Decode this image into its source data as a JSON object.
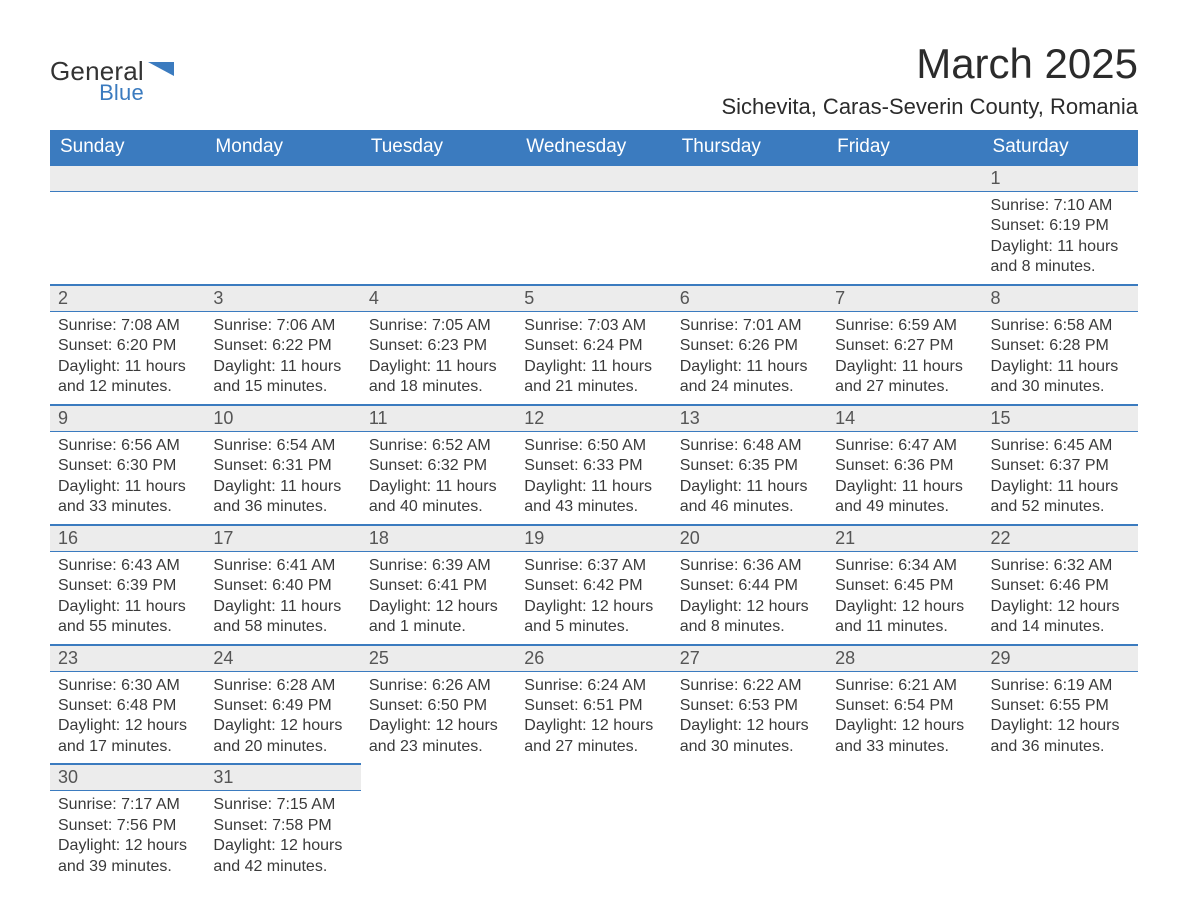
{
  "logo": {
    "general": "General",
    "blue": "Blue",
    "icon_color": "#3b7bbf"
  },
  "title": {
    "month": "March 2025",
    "location": "Sichevita, Caras-Severin County, Romania"
  },
  "header_bg": "#3b7bbf",
  "row_bg": "#ececec",
  "days_of_week": [
    "Sunday",
    "Monday",
    "Tuesday",
    "Wednesday",
    "Thursday",
    "Friday",
    "Saturday"
  ],
  "weeks": [
    [
      null,
      null,
      null,
      null,
      null,
      null,
      {
        "n": "1",
        "sr": "Sunrise: 7:10 AM",
        "ss": "Sunset: 6:19 PM",
        "dl1": "Daylight: 11 hours",
        "dl2": "and 8 minutes."
      }
    ],
    [
      {
        "n": "2",
        "sr": "Sunrise: 7:08 AM",
        "ss": "Sunset: 6:20 PM",
        "dl1": "Daylight: 11 hours",
        "dl2": "and 12 minutes."
      },
      {
        "n": "3",
        "sr": "Sunrise: 7:06 AM",
        "ss": "Sunset: 6:22 PM",
        "dl1": "Daylight: 11 hours",
        "dl2": "and 15 minutes."
      },
      {
        "n": "4",
        "sr": "Sunrise: 7:05 AM",
        "ss": "Sunset: 6:23 PM",
        "dl1": "Daylight: 11 hours",
        "dl2": "and 18 minutes."
      },
      {
        "n": "5",
        "sr": "Sunrise: 7:03 AM",
        "ss": "Sunset: 6:24 PM",
        "dl1": "Daylight: 11 hours",
        "dl2": "and 21 minutes."
      },
      {
        "n": "6",
        "sr": "Sunrise: 7:01 AM",
        "ss": "Sunset: 6:26 PM",
        "dl1": "Daylight: 11 hours",
        "dl2": "and 24 minutes."
      },
      {
        "n": "7",
        "sr": "Sunrise: 6:59 AM",
        "ss": "Sunset: 6:27 PM",
        "dl1": "Daylight: 11 hours",
        "dl2": "and 27 minutes."
      },
      {
        "n": "8",
        "sr": "Sunrise: 6:58 AM",
        "ss": "Sunset: 6:28 PM",
        "dl1": "Daylight: 11 hours",
        "dl2": "and 30 minutes."
      }
    ],
    [
      {
        "n": "9",
        "sr": "Sunrise: 6:56 AM",
        "ss": "Sunset: 6:30 PM",
        "dl1": "Daylight: 11 hours",
        "dl2": "and 33 minutes."
      },
      {
        "n": "10",
        "sr": "Sunrise: 6:54 AM",
        "ss": "Sunset: 6:31 PM",
        "dl1": "Daylight: 11 hours",
        "dl2": "and 36 minutes."
      },
      {
        "n": "11",
        "sr": "Sunrise: 6:52 AM",
        "ss": "Sunset: 6:32 PM",
        "dl1": "Daylight: 11 hours",
        "dl2": "and 40 minutes."
      },
      {
        "n": "12",
        "sr": "Sunrise: 6:50 AM",
        "ss": "Sunset: 6:33 PM",
        "dl1": "Daylight: 11 hours",
        "dl2": "and 43 minutes."
      },
      {
        "n": "13",
        "sr": "Sunrise: 6:48 AM",
        "ss": "Sunset: 6:35 PM",
        "dl1": "Daylight: 11 hours",
        "dl2": "and 46 minutes."
      },
      {
        "n": "14",
        "sr": "Sunrise: 6:47 AM",
        "ss": "Sunset: 6:36 PM",
        "dl1": "Daylight: 11 hours",
        "dl2": "and 49 minutes."
      },
      {
        "n": "15",
        "sr": "Sunrise: 6:45 AM",
        "ss": "Sunset: 6:37 PM",
        "dl1": "Daylight: 11 hours",
        "dl2": "and 52 minutes."
      }
    ],
    [
      {
        "n": "16",
        "sr": "Sunrise: 6:43 AM",
        "ss": "Sunset: 6:39 PM",
        "dl1": "Daylight: 11 hours",
        "dl2": "and 55 minutes."
      },
      {
        "n": "17",
        "sr": "Sunrise: 6:41 AM",
        "ss": "Sunset: 6:40 PM",
        "dl1": "Daylight: 11 hours",
        "dl2": "and 58 minutes."
      },
      {
        "n": "18",
        "sr": "Sunrise: 6:39 AM",
        "ss": "Sunset: 6:41 PM",
        "dl1": "Daylight: 12 hours",
        "dl2": "and 1 minute."
      },
      {
        "n": "19",
        "sr": "Sunrise: 6:37 AM",
        "ss": "Sunset: 6:42 PM",
        "dl1": "Daylight: 12 hours",
        "dl2": "and 5 minutes."
      },
      {
        "n": "20",
        "sr": "Sunrise: 6:36 AM",
        "ss": "Sunset: 6:44 PM",
        "dl1": "Daylight: 12 hours",
        "dl2": "and 8 minutes."
      },
      {
        "n": "21",
        "sr": "Sunrise: 6:34 AM",
        "ss": "Sunset: 6:45 PM",
        "dl1": "Daylight: 12 hours",
        "dl2": "and 11 minutes."
      },
      {
        "n": "22",
        "sr": "Sunrise: 6:32 AM",
        "ss": "Sunset: 6:46 PM",
        "dl1": "Daylight: 12 hours",
        "dl2": "and 14 minutes."
      }
    ],
    [
      {
        "n": "23",
        "sr": "Sunrise: 6:30 AM",
        "ss": "Sunset: 6:48 PM",
        "dl1": "Daylight: 12 hours",
        "dl2": "and 17 minutes."
      },
      {
        "n": "24",
        "sr": "Sunrise: 6:28 AM",
        "ss": "Sunset: 6:49 PM",
        "dl1": "Daylight: 12 hours",
        "dl2": "and 20 minutes."
      },
      {
        "n": "25",
        "sr": "Sunrise: 6:26 AM",
        "ss": "Sunset: 6:50 PM",
        "dl1": "Daylight: 12 hours",
        "dl2": "and 23 minutes."
      },
      {
        "n": "26",
        "sr": "Sunrise: 6:24 AM",
        "ss": "Sunset: 6:51 PM",
        "dl1": "Daylight: 12 hours",
        "dl2": "and 27 minutes."
      },
      {
        "n": "27",
        "sr": "Sunrise: 6:22 AM",
        "ss": "Sunset: 6:53 PM",
        "dl1": "Daylight: 12 hours",
        "dl2": "and 30 minutes."
      },
      {
        "n": "28",
        "sr": "Sunrise: 6:21 AM",
        "ss": "Sunset: 6:54 PM",
        "dl1": "Daylight: 12 hours",
        "dl2": "and 33 minutes."
      },
      {
        "n": "29",
        "sr": "Sunrise: 6:19 AM",
        "ss": "Sunset: 6:55 PM",
        "dl1": "Daylight: 12 hours",
        "dl2": "and 36 minutes."
      }
    ],
    [
      {
        "n": "30",
        "sr": "Sunrise: 7:17 AM",
        "ss": "Sunset: 7:56 PM",
        "dl1": "Daylight: 12 hours",
        "dl2": "and 39 minutes."
      },
      {
        "n": "31",
        "sr": "Sunrise: 7:15 AM",
        "ss": "Sunset: 7:58 PM",
        "dl1": "Daylight: 12 hours",
        "dl2": "and 42 minutes."
      },
      null,
      null,
      null,
      null,
      null
    ]
  ]
}
